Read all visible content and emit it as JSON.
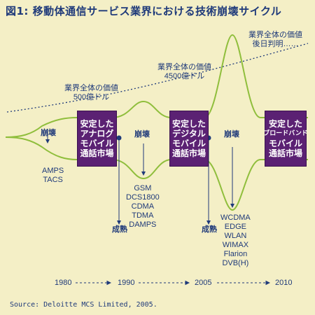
{
  "title": "図1: 移動体通信サービス業界における技術崩壊サイクル",
  "value_labels": [
    {
      "lines": [
        "業界全体の価値",
        "500億ドル"
      ]
    },
    {
      "lines": [
        "業界全体の価値",
        "4500億ドル"
      ]
    },
    {
      "lines": [
        "業界全体の価値",
        "後日判明……"
      ]
    }
  ],
  "boxes": [
    {
      "lines": [
        "安定した",
        "アナログ",
        "モバイル",
        "通話市場"
      ]
    },
    {
      "lines": [
        "安定した",
        "デジタル",
        "モバイル",
        "通話市場"
      ]
    },
    {
      "lines": [
        "安定した",
        "ブロードバンド",
        "モバイル",
        "通話市場"
      ]
    }
  ],
  "collapse_label": "崩壊",
  "maturity_label": "成熟",
  "technologies": [
    {
      "lines": [
        "AMPS",
        "TACS"
      ]
    },
    {
      "lines": [
        "GSM",
        "DCS1800",
        "CDMA",
        "TDMA",
        "DAMPS"
      ]
    },
    {
      "lines": [
        "WCDMA",
        "EDGE",
        "WLAN",
        "WIMAX",
        "Flarion",
        "DVB(H)"
      ]
    }
  ],
  "years": [
    "1980",
    "1990",
    "2005",
    "2010"
  ],
  "source": "Source: Deloitte MCS Limited, 2005.",
  "colors": {
    "background": "#f4efc6",
    "curve": "#8fbe3c",
    "box": "#5b2173",
    "text": "#1f3a7a"
  }
}
